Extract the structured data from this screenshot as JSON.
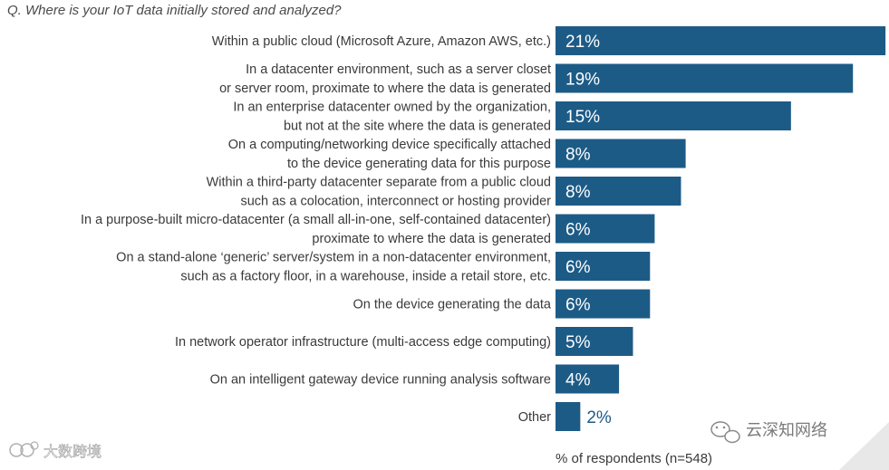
{
  "question": "Q. Where is your IoT data initially stored and analyzed?",
  "footnote": "% of respondents (n=548)",
  "watermark_right": "云深知网络",
  "watermark_left": "大数跨境",
  "colors": {
    "bar": "#1d5b87",
    "text": "#3a3a3a",
    "question": "#4a4a4a"
  },
  "chart_data": {
    "type": "bar",
    "orientation": "horizontal",
    "title": "Q. Where is your IoT data initially stored and analyzed?",
    "xlabel": "% of respondents (n=548)",
    "ylabel": "",
    "xlim": [
      0,
      21
    ],
    "grid": false,
    "legend": "none",
    "categories": [
      [
        "Within a public cloud (Microsoft Azure, Amazon AWS, etc.)"
      ],
      [
        "In a datacenter environment, such as a server closet",
        "or server room, proximate to where the data is generated"
      ],
      [
        "In an enterprise datacenter owned by the organization,",
        "but not at the site where the data is generated"
      ],
      [
        "On a computing/networking device specifically attached",
        "to the device generating data for this purpose"
      ],
      [
        "Within a third-party datacenter separate from a public cloud",
        "such as a colocation, interconnect or hosting provider"
      ],
      [
        "In a purpose-built micro-datacenter (a small all-in-one, self-contained datacenter)",
        "proximate to where the data is generated"
      ],
      [
        "On a stand-alone ‘generic’ server/system in a non-datacenter environment,",
        "such as a factory floor, in a warehouse, inside a retail store, etc."
      ],
      [
        "On the device generating the data"
      ],
      [
        "In network operator infrastructure (multi-access edge computing)"
      ],
      [
        "On an intelligent gateway device running analysis software"
      ],
      [
        "Other"
      ]
    ],
    "values": [
      21.3,
      19.2,
      15.2,
      8.4,
      8.1,
      6.4,
      6.1,
      6.1,
      5.0,
      4.1,
      1.6
    ],
    "value_labels": [
      "21%",
      "19%",
      "15%",
      "8%",
      "8%",
      "6%",
      "6%",
      "6%",
      "5%",
      "4%",
      "2%"
    ]
  }
}
